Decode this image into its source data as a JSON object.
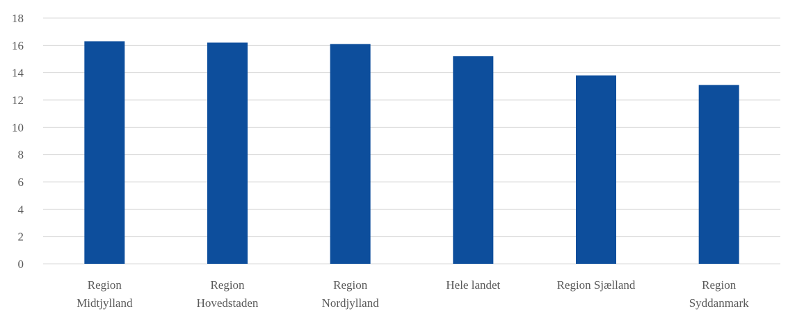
{
  "chart_data": {
    "type": "bar",
    "title": "",
    "xlabel": "",
    "ylabel": "",
    "ylim": [
      0,
      18
    ],
    "yticks": [
      0,
      2,
      4,
      6,
      8,
      10,
      12,
      14,
      16,
      18
    ],
    "grid": true,
    "legend": "none",
    "bar_color": "#0D4E9C",
    "categories": [
      [
        "Region",
        "Midtjylland"
      ],
      [
        "Region",
        "Hovedstaden"
      ],
      [
        "Region",
        "Nordjylland"
      ],
      [
        "Hele landet"
      ],
      [
        "Region Sjælland"
      ],
      [
        "Region",
        "Syddanmark"
      ]
    ],
    "values": [
      16.3,
      16.2,
      16.1,
      15.2,
      13.8,
      13.1
    ]
  }
}
